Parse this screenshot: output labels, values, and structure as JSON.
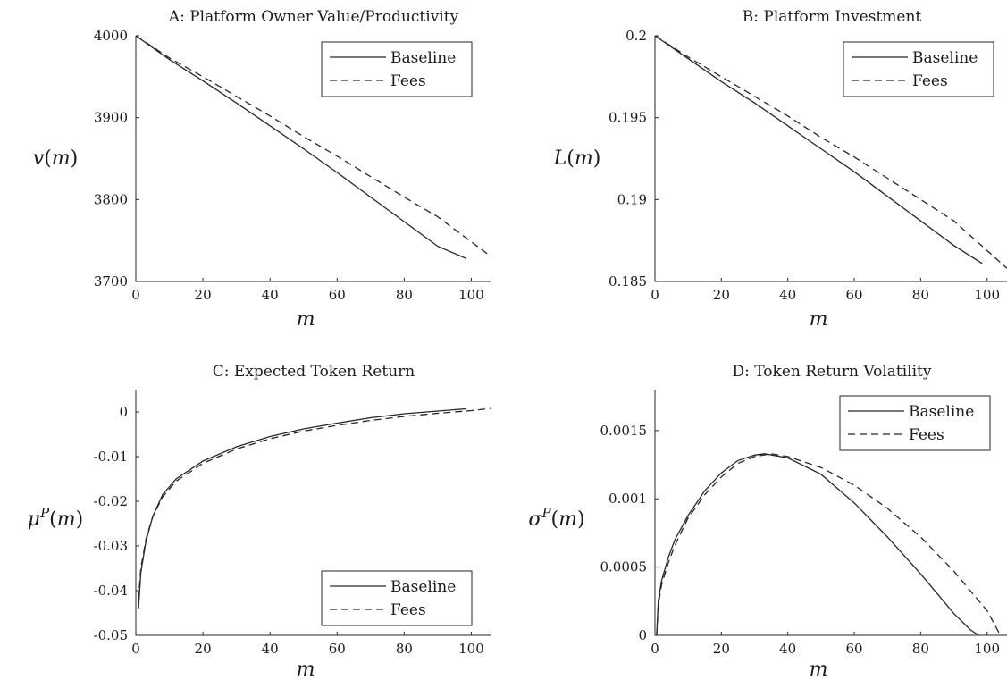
{
  "chart_data": [
    {
      "type": "line",
      "title": "A: Platform Owner Value/Productivity",
      "xlabel": "m",
      "ylabel": "v(m)",
      "xlim": [
        0,
        106
      ],
      "ylim": [
        3700,
        4000
      ],
      "xticks": [
        "0",
        "20",
        "40",
        "60",
        "80",
        "100"
      ],
      "yticks": [
        "3700",
        "3800",
        "3900",
        "4000"
      ],
      "legend_position": "top-right",
      "series": [
        {
          "name": "Baseline",
          "style": "solid",
          "x": [
            0,
            10,
            20,
            30,
            40,
            50,
            60,
            70,
            80,
            90,
            98.5
          ],
          "y": [
            4000,
            3971,
            3945,
            3918,
            3890,
            3862,
            3833,
            3803,
            3773,
            3743,
            3728
          ]
        },
        {
          "name": "Fees",
          "style": "dashed",
          "x": [
            0,
            10,
            20,
            30,
            40,
            50,
            60,
            70,
            80,
            90,
            106
          ],
          "y": [
            4000,
            3973,
            3950,
            3926,
            3902,
            3877,
            3853,
            3828,
            3803,
            3779,
            3730
          ]
        }
      ]
    },
    {
      "type": "line",
      "title": "B: Platform Investment",
      "xlabel": "m",
      "ylabel": "L(m)",
      "xlim": [
        0,
        106
      ],
      "ylim": [
        0.185,
        0.2
      ],
      "xticks": [
        "0",
        "20",
        "40",
        "60",
        "80",
        "100"
      ],
      "yticks": [
        "0.185",
        "0.19",
        "0.195",
        "0.2"
      ],
      "legend_position": "top-right",
      "series": [
        {
          "name": "Baseline",
          "style": "solid",
          "x": [
            0,
            10,
            20,
            30,
            40,
            50,
            60,
            70,
            80,
            90,
            98.5
          ],
          "y": [
            0.2,
            0.1986,
            0.1972,
            0.1959,
            0.1945,
            0.1931,
            0.1917,
            0.1902,
            0.1887,
            0.1872,
            0.1861
          ]
        },
        {
          "name": "Fees",
          "style": "dashed",
          "x": [
            0,
            10,
            20,
            30,
            40,
            50,
            60,
            70,
            80,
            90,
            106
          ],
          "y": [
            0.2,
            0.1987,
            0.1975,
            0.1963,
            0.1951,
            0.1938,
            0.1926,
            0.1913,
            0.19,
            0.1887,
            0.1858
          ]
        }
      ]
    },
    {
      "type": "line",
      "title": "C: Expected Token Return",
      "xlabel": "m",
      "ylabel": "μ^P(m)",
      "xlim": [
        0,
        106
      ],
      "ylim": [
        -0.05,
        0.005
      ],
      "xticks": [
        "0",
        "20",
        "40",
        "60",
        "80",
        "100"
      ],
      "yticks": [
        "-0.05",
        "-0.04",
        "-0.03",
        "-0.02",
        "-0.01",
        "0"
      ],
      "legend_position": "bottom-right",
      "series": [
        {
          "name": "Baseline",
          "style": "solid",
          "x": [
            0.8,
            1.5,
            3,
            5,
            8,
            12,
            20,
            30,
            40,
            50,
            60,
            70,
            80,
            90,
            98.5
          ],
          "y": [
            -0.044,
            -0.036,
            -0.029,
            -0.0235,
            -0.0185,
            -0.015,
            -0.011,
            -0.0078,
            -0.0055,
            -0.0038,
            -0.0025,
            -0.0013,
            -0.0004,
            0.0002,
            0.0007
          ]
        },
        {
          "name": "Fees",
          "style": "dashed",
          "x": [
            0.8,
            1.5,
            3,
            5,
            8,
            12,
            20,
            30,
            40,
            50,
            60,
            70,
            80,
            90,
            100,
            106
          ],
          "y": [
            -0.042,
            -0.035,
            -0.0285,
            -0.0235,
            -0.019,
            -0.0155,
            -0.0115,
            -0.0083,
            -0.006,
            -0.0043,
            -0.003,
            -0.0019,
            -0.001,
            -0.0003,
            0.0003,
            0.0008
          ]
        }
      ]
    },
    {
      "type": "line",
      "title": "D: Token Return Volatility",
      "xlabel": "m",
      "ylabel": "σ^P(m)",
      "xlim": [
        0,
        106
      ],
      "ylim": [
        0,
        0.0018
      ],
      "xticks": [
        "0",
        "20",
        "40",
        "60",
        "80",
        "100"
      ],
      "yticks": [
        "0",
        "0.0005",
        "0.001",
        "0.0015"
      ],
      "legend_position": "top-right",
      "series": [
        {
          "name": "Baseline",
          "style": "solid",
          "x": [
            0.5,
            1,
            2,
            4,
            6,
            10,
            15,
            20,
            25,
            30,
            33,
            40,
            50,
            60,
            70,
            80,
            90,
            95,
            97.5
          ],
          "y": [
            0,
            0.00025,
            0.0004,
            0.00057,
            0.0007,
            0.00088,
            0.00106,
            0.00119,
            0.00128,
            0.00132,
            0.00133,
            0.0013,
            0.00118,
            0.00097,
            0.00072,
            0.00045,
            0.00016,
            4e-05,
            0
          ]
        },
        {
          "name": "Fees",
          "style": "dashed",
          "x": [
            0.5,
            1,
            2,
            4,
            6,
            10,
            15,
            20,
            25,
            30,
            35,
            40,
            50,
            60,
            70,
            80,
            90,
            100,
            104
          ],
          "y": [
            0,
            0.00022,
            0.00037,
            0.00053,
            0.00066,
            0.00086,
            0.00103,
            0.00116,
            0.00126,
            0.00131,
            0.00133,
            0.00131,
            0.00123,
            0.0011,
            0.00093,
            0.00072,
            0.00047,
            0.00018,
            0
          ]
        }
      ]
    }
  ]
}
